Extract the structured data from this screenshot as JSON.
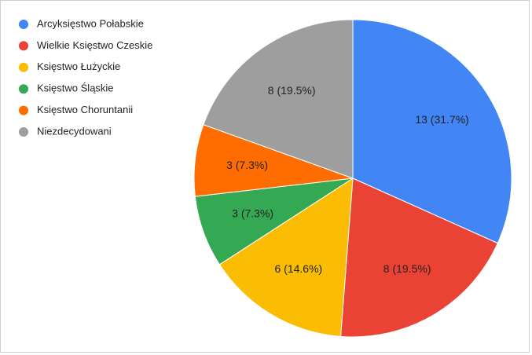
{
  "chart_data": {
    "type": "pie",
    "categories": [
      "Arcyksięstwo Połabskie",
      "Wielkie Księstwo Czeskie",
      "Księstwo Łużyckie",
      "Księstwo Śląskie",
      "Księstwo Choruntanii",
      "Niezdecydowani"
    ],
    "values": [
      13,
      8,
      6,
      3,
      3,
      8
    ],
    "value_labels": [
      "13 (31.7%)",
      "8 (19.5%)",
      "6 (14.6%)",
      "3 (7.3%)",
      "3 (7.3%)",
      "8 (19.5%)"
    ],
    "colors": [
      "#4285f4",
      "#ea4335",
      "#fbbc04",
      "#34a853",
      "#ff6d01",
      "#9e9e9e"
    ],
    "legend": "left"
  }
}
